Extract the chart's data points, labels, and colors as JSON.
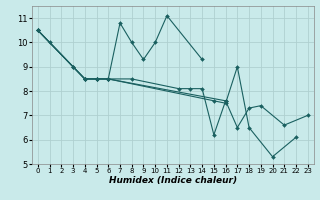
{
  "xlabel": "Humidex (Indice chaleur)",
  "xlim": [
    -0.5,
    23.5
  ],
  "ylim": [
    5,
    11.5
  ],
  "yticks": [
    5,
    6,
    7,
    8,
    9,
    10,
    11
  ],
  "xticks": [
    0,
    1,
    2,
    3,
    4,
    5,
    6,
    7,
    8,
    9,
    10,
    11,
    12,
    13,
    14,
    15,
    16,
    17,
    18,
    19,
    20,
    21,
    22,
    23
  ],
  "bg_color": "#c9eaea",
  "grid_color": "#afd0d0",
  "line_color": "#1a6060",
  "lines": [
    {
      "x": [
        0,
        1,
        3,
        4,
        5,
        6,
        7,
        8,
        9,
        10,
        11,
        14
      ],
      "y": [
        10.5,
        10.0,
        9.0,
        8.5,
        8.5,
        8.5,
        10.8,
        10.0,
        9.3,
        10.0,
        11.1,
        9.3
      ]
    },
    {
      "x": [
        0,
        3,
        4,
        5,
        6,
        8,
        12,
        13,
        14,
        15,
        16
      ],
      "y": [
        10.5,
        9.0,
        8.5,
        8.5,
        8.5,
        8.5,
        8.1,
        8.1,
        8.1,
        6.2,
        7.6
      ]
    },
    {
      "x": [
        0,
        4,
        5,
        6,
        15,
        16,
        17,
        18,
        20,
        22
      ],
      "y": [
        10.5,
        8.5,
        8.5,
        8.5,
        7.6,
        7.5,
        9.0,
        6.5,
        5.3,
        6.1
      ]
    },
    {
      "x": [
        0,
        4,
        5,
        6,
        16,
        17,
        18,
        19,
        21,
        23
      ],
      "y": [
        10.5,
        8.5,
        8.5,
        8.5,
        7.6,
        6.5,
        7.3,
        7.4,
        6.6,
        7.0
      ]
    }
  ]
}
